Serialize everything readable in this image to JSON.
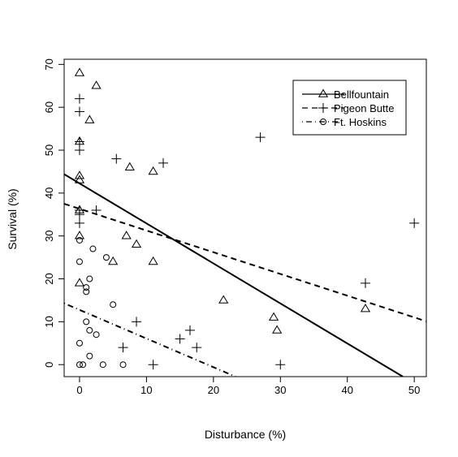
{
  "chart_data": {
    "type": "scatter",
    "title": "",
    "xlabel": "Disturbance (%)",
    "ylabel": "Survival (%)",
    "xlim": [
      -2.3,
      51.8
    ],
    "ylim": [
      -2.8,
      71.2
    ],
    "xticks": [
      0,
      10,
      20,
      30,
      40,
      50
    ],
    "xtick_labels": [
      "0",
      "10",
      "20",
      "30",
      "40",
      "50"
    ],
    "yticks": [
      0,
      10,
      20,
      30,
      40,
      50,
      60,
      70
    ],
    "ytick_labels": [
      "0",
      "10",
      "20",
      "30",
      "40",
      "50",
      "60",
      "70"
    ],
    "grid": false,
    "legend_position": "top-right",
    "series": [
      {
        "name": "Bellfountain",
        "marker": "triangle",
        "line_style": "solid",
        "points": [
          [
            0,
            68
          ],
          [
            2.5,
            65
          ],
          [
            1.5,
            57
          ],
          [
            0,
            52
          ],
          [
            7.5,
            46
          ],
          [
            11,
            45
          ],
          [
            0,
            44
          ],
          [
            0,
            43
          ],
          [
            0,
            36
          ],
          [
            0,
            30
          ],
          [
            7,
            30
          ],
          [
            8.5,
            28
          ],
          [
            5,
            24
          ],
          [
            11,
            24
          ],
          [
            0,
            19
          ],
          [
            21.5,
            15
          ],
          [
            29,
            11
          ],
          [
            29.5,
            8
          ],
          [
            42.7,
            13
          ]
        ],
        "fit_line": [
          [
            -2.3,
            44.4
          ],
          [
            48.3,
            -2.8
          ]
        ]
      },
      {
        "name": "Pigeon Butte",
        "marker": "plus",
        "line_style": "dashed",
        "points": [
          [
            0,
            62
          ],
          [
            0,
            59
          ],
          [
            0,
            52
          ],
          [
            0,
            50
          ],
          [
            5.5,
            48
          ],
          [
            12.5,
            47
          ],
          [
            27,
            53
          ],
          [
            0,
            36
          ],
          [
            0,
            35
          ],
          [
            2.5,
            36
          ],
          [
            0,
            33
          ],
          [
            50,
            33
          ],
          [
            42.7,
            19
          ],
          [
            8.5,
            10
          ],
          [
            6.5,
            4
          ],
          [
            15,
            6
          ],
          [
            16.5,
            8
          ],
          [
            17.5,
            4
          ],
          [
            11,
            0
          ],
          [
            30,
            0
          ]
        ],
        "fit_line": [
          [
            -2.3,
            37.5
          ],
          [
            51.8,
            10.1
          ]
        ]
      },
      {
        "name": "Ft. Hoskins",
        "marker": "circle",
        "line_style": "dotdash",
        "points": [
          [
            0,
            29
          ],
          [
            0,
            24
          ],
          [
            2,
            27
          ],
          [
            4,
            25
          ],
          [
            1.5,
            20
          ],
          [
            1,
            18
          ],
          [
            1,
            17
          ],
          [
            5,
            14
          ],
          [
            1,
            10
          ],
          [
            1.5,
            8
          ],
          [
            2.5,
            7
          ],
          [
            0,
            5
          ],
          [
            1.5,
            2
          ],
          [
            0,
            0
          ],
          [
            0.5,
            0
          ],
          [
            3.5,
            0
          ],
          [
            6.5,
            0
          ]
        ],
        "fit_line": [
          [
            -2.3,
            14.3
          ],
          [
            23.3,
            -2.8
          ]
        ]
      }
    ]
  }
}
